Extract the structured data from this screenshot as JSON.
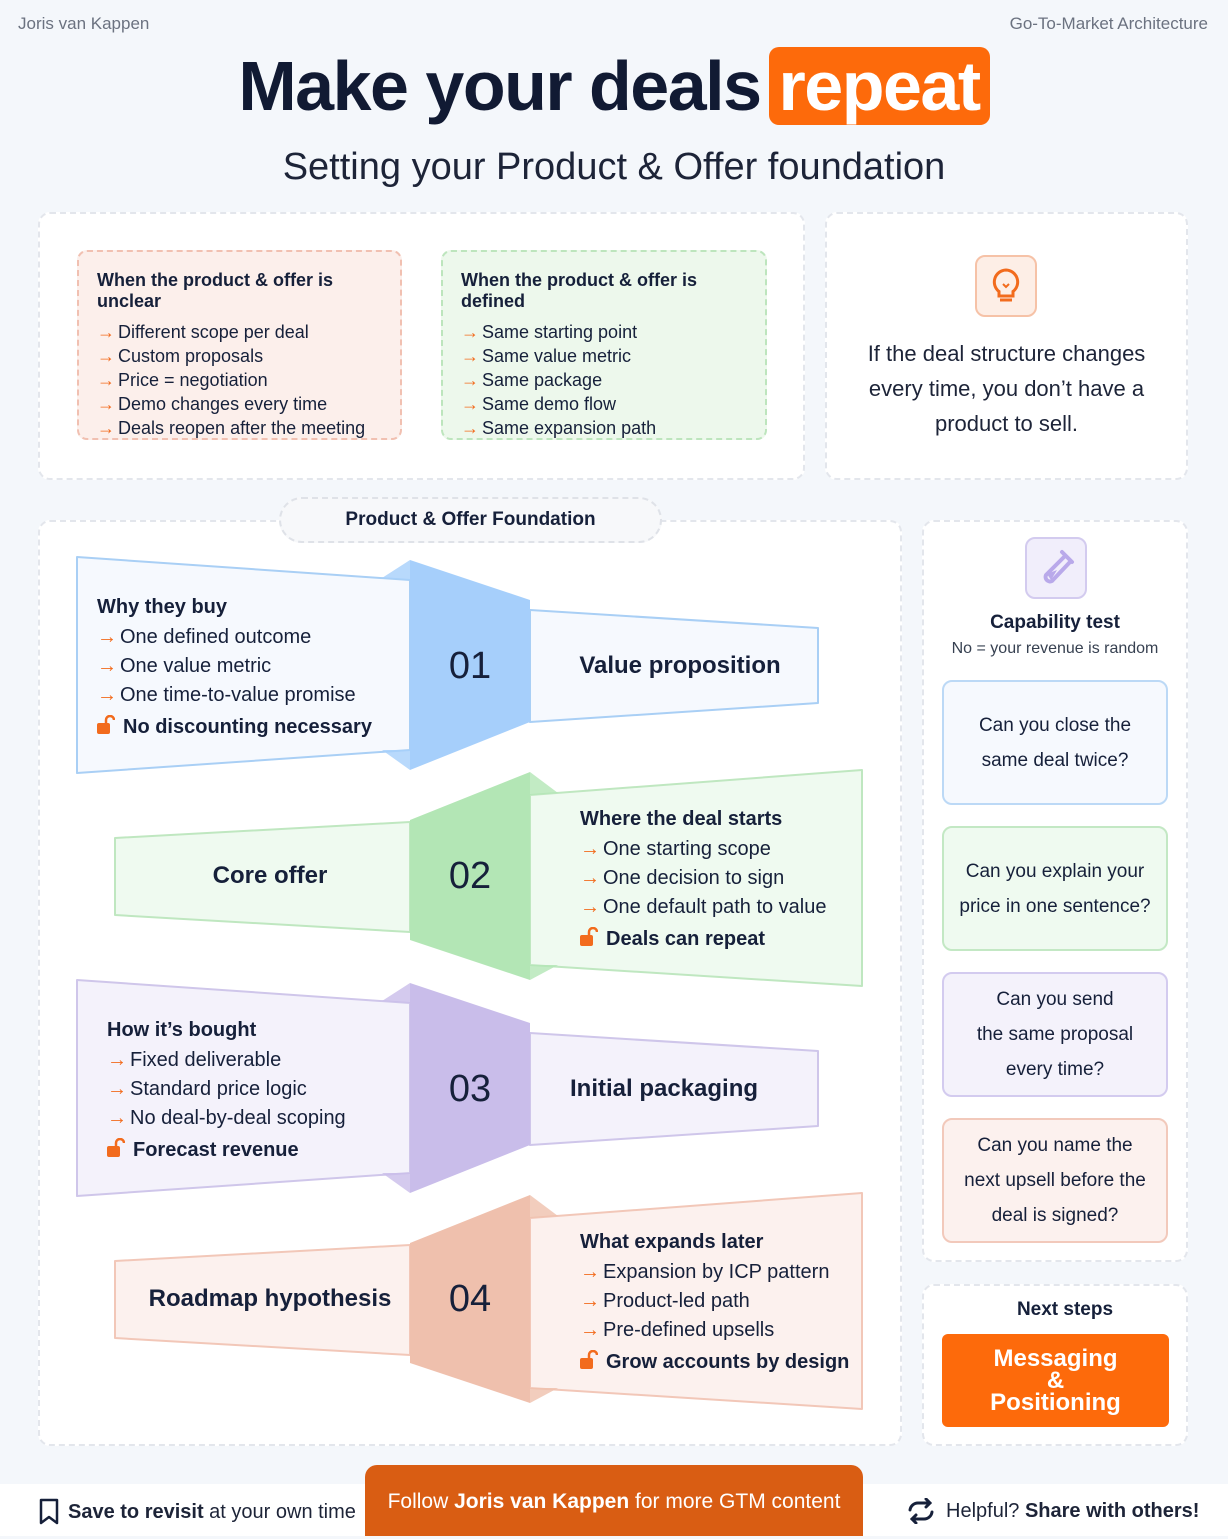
{
  "header": {
    "author": "Joris van Kappen",
    "series": "Go-To-Market Architecture"
  },
  "title": {
    "main": "Make your deals",
    "highlight": "repeat",
    "subtitle": "Setting your Product & Offer foundation"
  },
  "comparison": {
    "unclear": {
      "title": "When the product & offer is unclear",
      "items": [
        "Different scope per deal",
        "Custom proposals",
        "Price = negotiation",
        "Demo changes every time",
        "Deals reopen after the meeting"
      ]
    },
    "defined": {
      "title": "When the product & offer is defined",
      "items": [
        "Same starting point",
        "Same value metric",
        "Same package",
        "Same demo flow",
        "Same expansion path"
      ]
    }
  },
  "insight": {
    "icon": "lightbulb-icon",
    "lines": [
      "If the deal structure changes",
      "every time, you don’t have a",
      "product to sell."
    ]
  },
  "foundation": {
    "title": "Product & Offer Foundation",
    "arrow": "→",
    "rows": [
      {
        "num": "01",
        "label": "Value proposition",
        "detail_title": "Why they buy",
        "items": [
          "One defined outcome",
          "One value metric",
          "One time-to-value promise"
        ],
        "outcome": "No discounting necessary",
        "color": "#a6cffb"
      },
      {
        "num": "02",
        "label": "Core offer",
        "detail_title": "Where the deal starts",
        "items": [
          "One starting scope",
          "One decision to sign",
          "One default path to value"
        ],
        "outcome": "Deals can repeat",
        "color": "#b3e6b5"
      },
      {
        "num": "03",
        "label": "Initial packaging",
        "detail_title": "How it’s bought",
        "items": [
          "Fixed deliverable",
          "Standard price logic",
          "No deal-by-deal scoping"
        ],
        "outcome": "Forecast revenue",
        "color": "#c9bdea"
      },
      {
        "num": "04",
        "label": "Roadmap hypothesis",
        "detail_title": "What expands later",
        "items": [
          "Expansion by ICP pattern",
          "Product-led path",
          "Pre-defined upsells"
        ],
        "outcome": "Grow accounts by design",
        "color": "#efc0ad"
      }
    ]
  },
  "capability": {
    "icon": "test-tube-icon",
    "title": "Capability test",
    "subtitle": "No = your revenue is random",
    "questions": [
      {
        "lines": [
          "Can you close the",
          "same deal twice?"
        ]
      },
      {
        "lines": [
          "Can you explain your",
          "price in one sentence?"
        ]
      },
      {
        "lines": [
          "Can you send",
          "the same proposal",
          "every time?"
        ]
      },
      {
        "lines": [
          "Can you name the",
          "next upsell before the",
          "deal is signed?"
        ]
      }
    ]
  },
  "next_steps": {
    "title": "Next steps",
    "button": [
      "Messaging",
      "&",
      "Positioning"
    ]
  },
  "footer": {
    "save_bold": "Save to revisit",
    "save_rest": " at your own time",
    "follow_pre": "Follow ",
    "follow_name": "Joris van Kappen",
    "follow_post": " for more GTM content",
    "share_pre": "Helpful? ",
    "share_bold": "Share with others!"
  },
  "colors": {
    "accent": "#fd6a0b",
    "footer_button": "#d95d13"
  }
}
